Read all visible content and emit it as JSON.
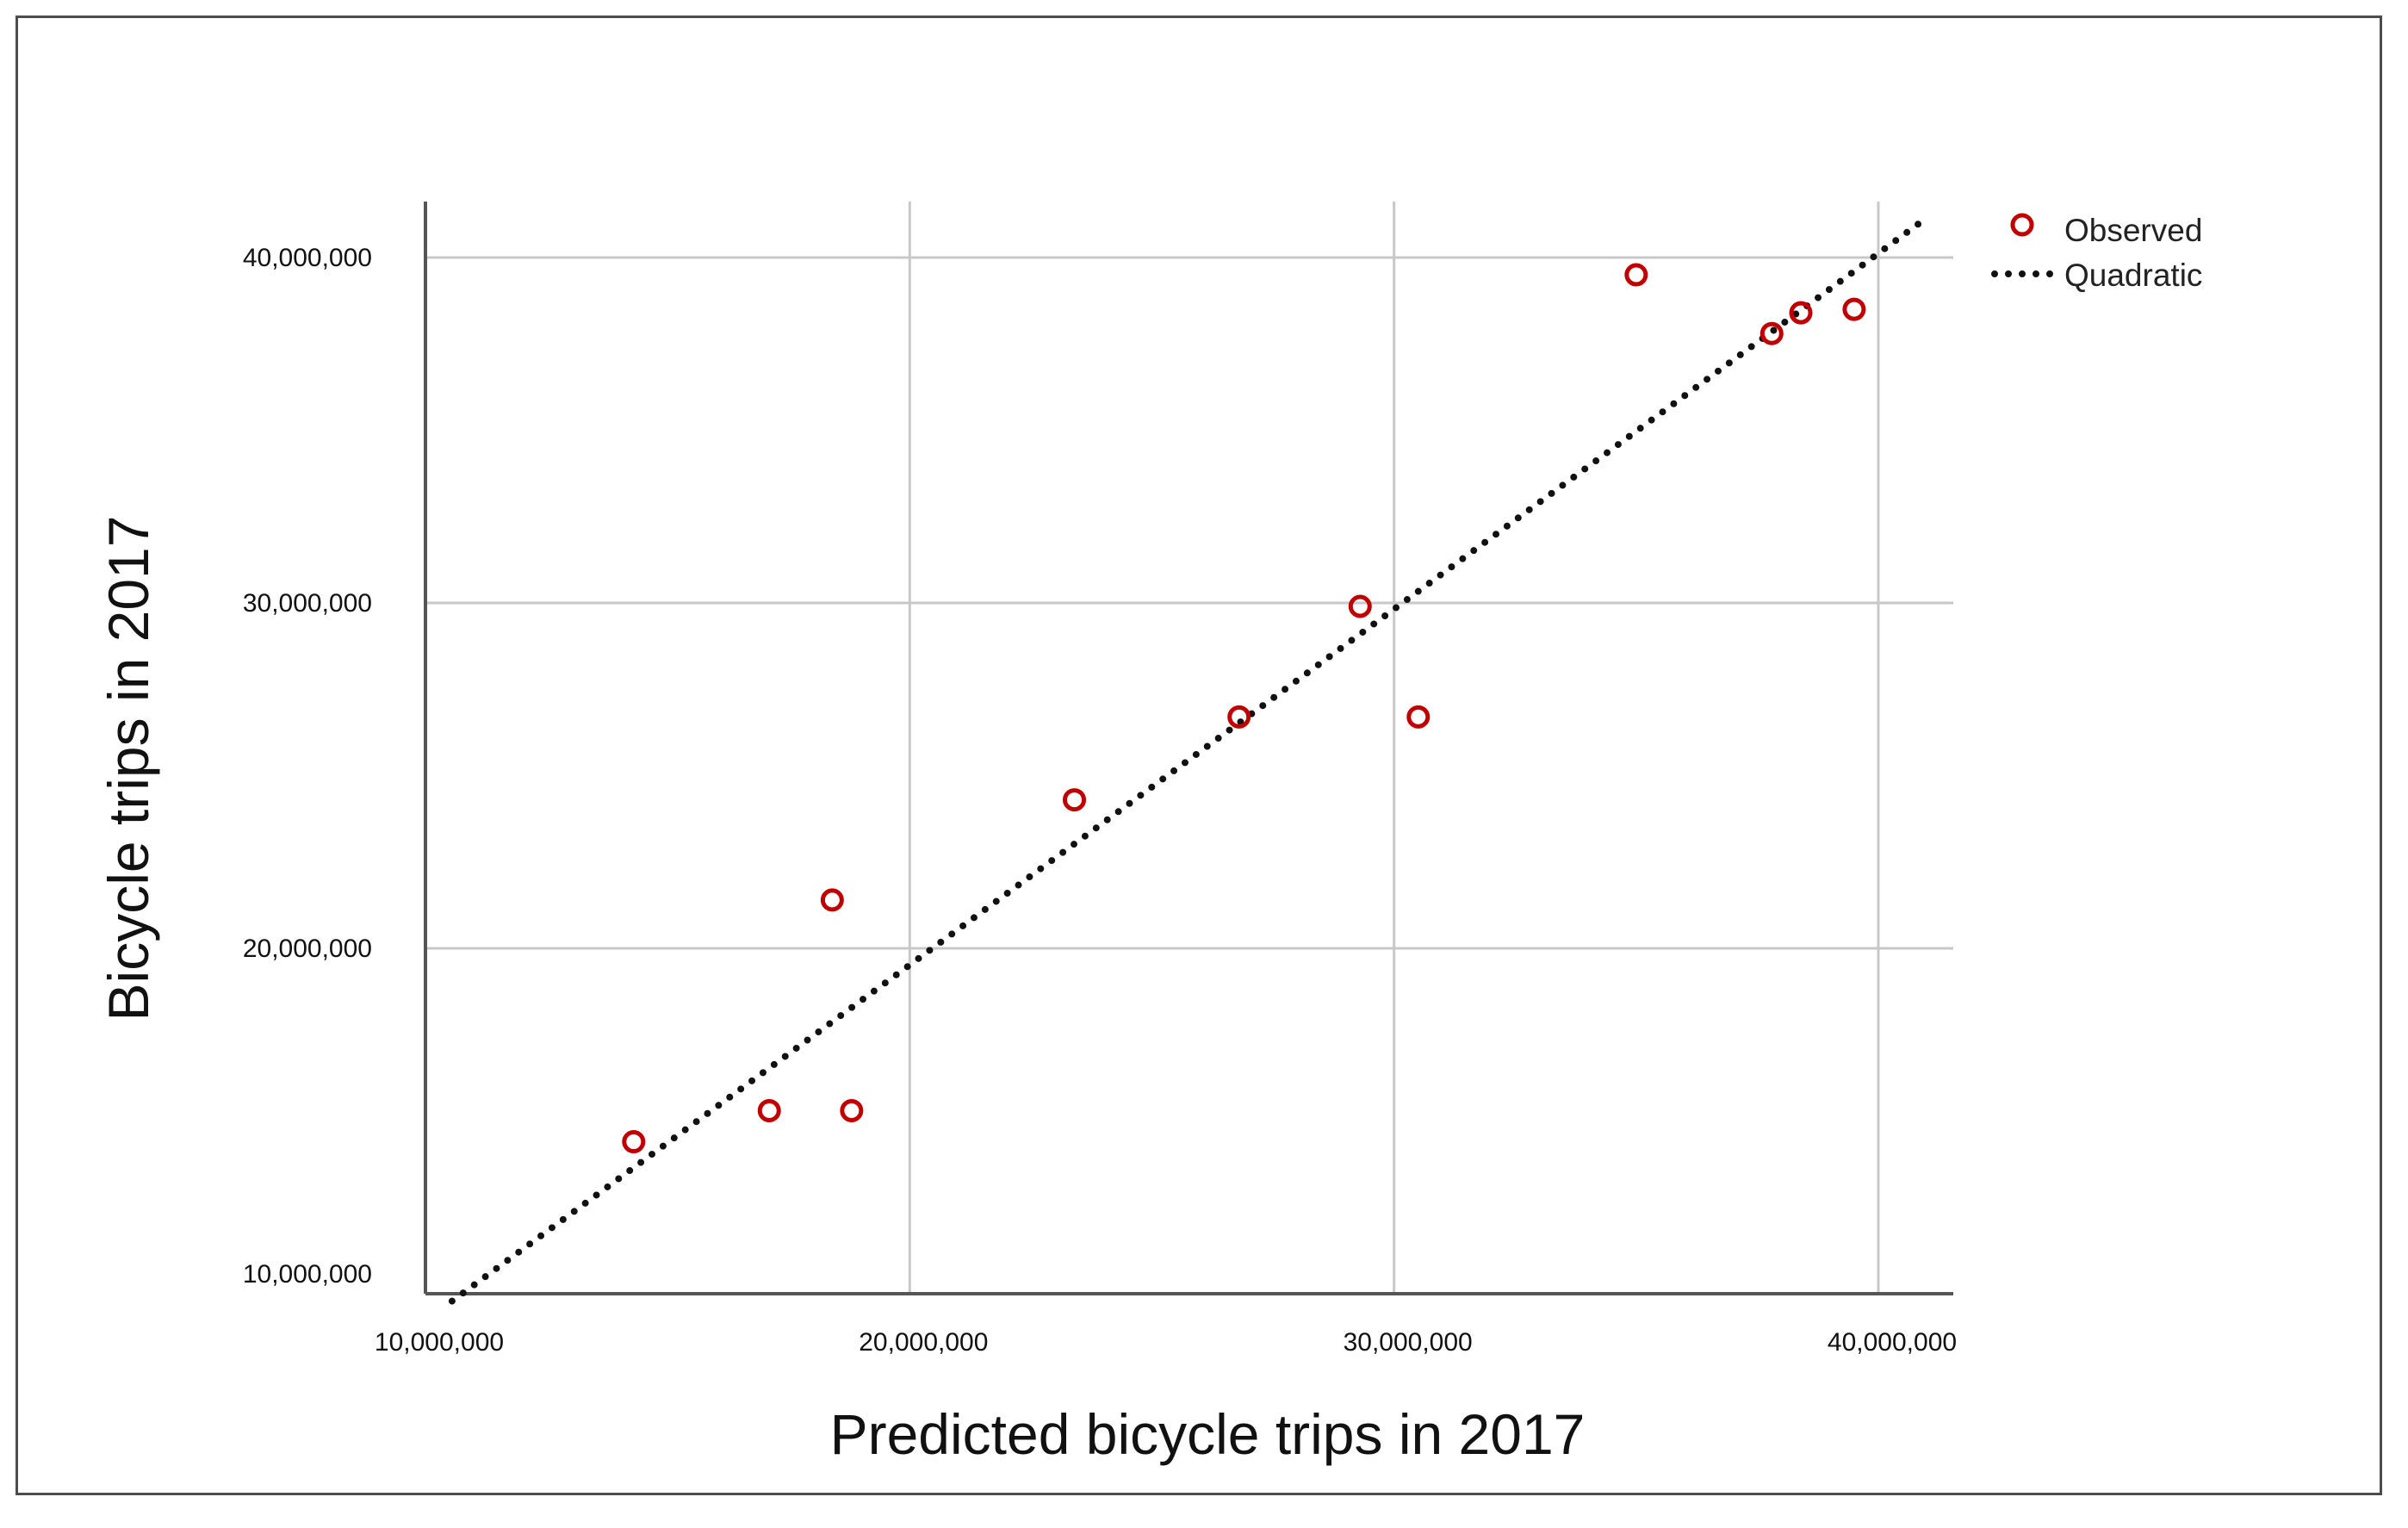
{
  "chart_data": {
    "type": "scatter",
    "title": "",
    "xlabel": "Predicted bicycle trips in 2017",
    "ylabel": "Bicycle trips in 2017",
    "xlim": [
      10000000,
      41500000
    ],
    "ylim": [
      10000000,
      41500000
    ],
    "x_ticks": [
      10000000,
      20000000,
      30000000,
      40000000
    ],
    "y_ticks": [
      10000000,
      20000000,
      30000000,
      40000000
    ],
    "x_tick_labels": [
      "10,000,000",
      "20,000,000",
      "30,000,000",
      "40,000,000"
    ],
    "y_tick_labels": [
      "10,000,000",
      "20,000,000",
      "30,000,000",
      "40,000,000"
    ],
    "grid": true,
    "legend_position": "top-right",
    "series": [
      {
        "name": "Observed",
        "kind": "markers",
        "color": "#c00000",
        "x": [
          14300000,
          17100000,
          18400000,
          18800000,
          23400000,
          26800000,
          29300000,
          30500000,
          35000000,
          37800000,
          38400000,
          39500000
        ],
        "y": [
          14400000,
          15300000,
          21400000,
          15300000,
          24300000,
          26700000,
          29900000,
          26700000,
          39500000,
          37800000,
          38400000,
          38500000
        ]
      },
      {
        "name": "Quadratic",
        "kind": "fit-line",
        "color": "#111111",
        "coefficients": {
          "a": 0.0,
          "b": 1.03,
          "c": -1080000
        },
        "x_range": [
          10550000,
          41500000
        ]
      }
    ]
  }
}
